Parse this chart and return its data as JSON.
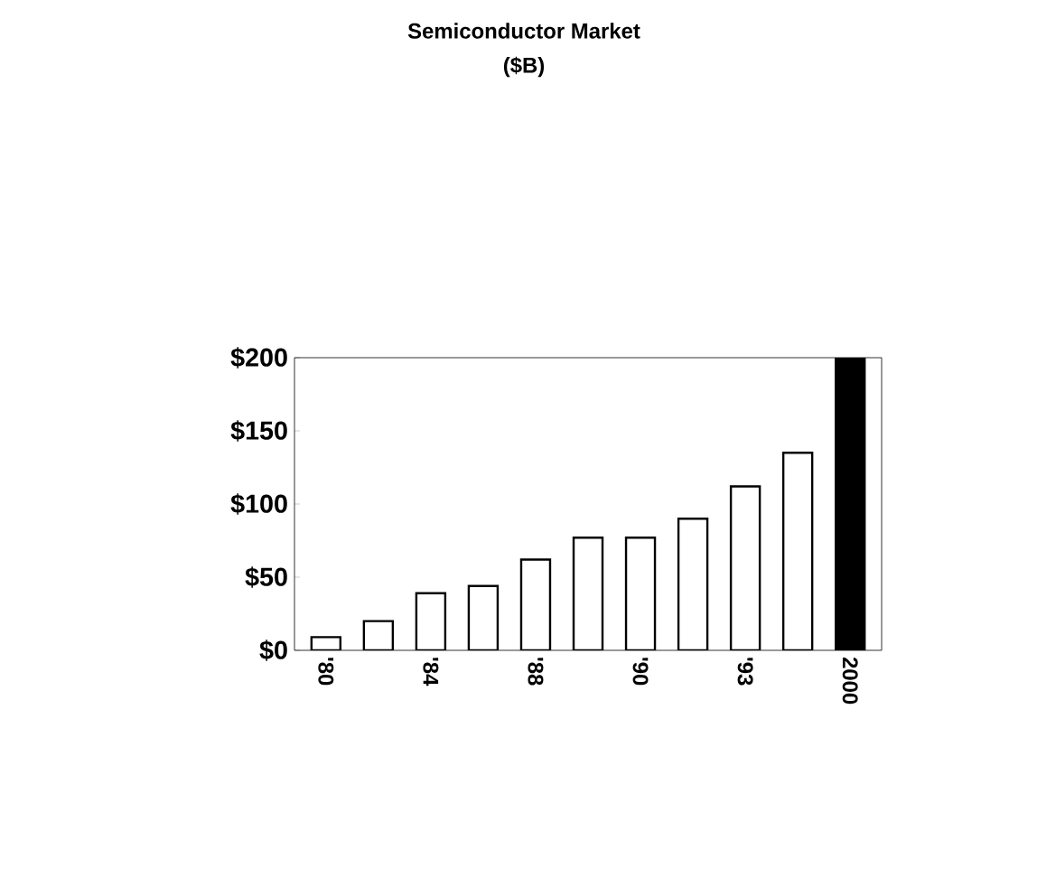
{
  "chart_data": {
    "type": "bar",
    "title": "Semiconductor Market",
    "subtitle": "($B)",
    "categories": [
      "'80",
      null,
      "'84",
      null,
      "'88",
      null,
      "'90",
      null,
      "'93",
      null,
      "2000"
    ],
    "values": [
      9,
      20,
      39,
      44,
      62,
      77,
      77,
      90,
      112,
      135,
      200
    ],
    "colors": [
      "#ffffff",
      "#ffffff",
      "#ffffff",
      "#ffffff",
      "#ffffff",
      "#ffffff",
      "#ffffff",
      "#ffffff",
      "#ffffff",
      "#ffffff",
      "#000000"
    ],
    "ylim": [
      0,
      200
    ],
    "yticks": [
      {
        "value": 0,
        "label": "$0"
      },
      {
        "value": 50,
        "label": "$50"
      },
      {
        "value": 100,
        "label": "$100"
      },
      {
        "value": 150,
        "label": "$150"
      },
      {
        "value": 200,
        "label": "$200"
      }
    ],
    "grid": false
  }
}
